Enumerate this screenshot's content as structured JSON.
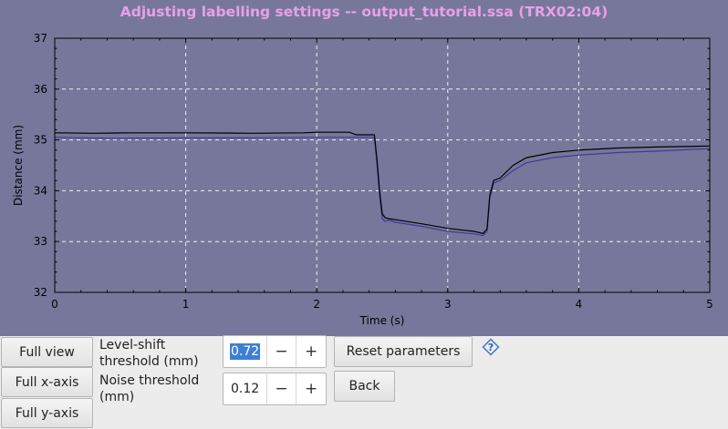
{
  "window": {
    "title": "Adjusting labelling settings -- output_tutorial.ssa (TRX02:04)"
  },
  "chart_data": {
    "type": "line",
    "xlabel": "Time (s)",
    "ylabel": "Distance (mm)",
    "xlim": [
      0,
      5
    ],
    "ylim": [
      32,
      37
    ],
    "x_ticks": [
      "0",
      "1",
      "2",
      "3",
      "4",
      "5"
    ],
    "y_ticks": [
      "32",
      "33",
      "34",
      "35",
      "36",
      "37"
    ],
    "grid": true,
    "series": [
      {
        "color": "#000000",
        "x": [
          0,
          0.3,
          0.6,
          1.0,
          1.5,
          1.9,
          2.0,
          2.25,
          2.3,
          2.44,
          2.46,
          2.48,
          2.5,
          2.52,
          2.55,
          2.6,
          2.8,
          3.0,
          3.2,
          3.27,
          3.3,
          3.32,
          3.35,
          3.4,
          3.5,
          3.6,
          3.8,
          4.0,
          4.3,
          4.6,
          5.0
        ],
        "y": [
          35.14,
          35.13,
          35.14,
          35.14,
          35.13,
          35.14,
          35.15,
          35.15,
          35.1,
          35.1,
          34.6,
          34.0,
          33.55,
          33.47,
          33.45,
          33.43,
          33.35,
          33.26,
          33.2,
          33.16,
          33.25,
          33.9,
          34.2,
          34.25,
          34.5,
          34.65,
          34.75,
          34.8,
          34.84,
          34.86,
          34.88
        ]
      },
      {
        "color": "#3b3b9c",
        "x": [
          0,
          0.5,
          1.0,
          1.5,
          2.0,
          2.3,
          2.44,
          2.46,
          2.48,
          2.5,
          2.52,
          2.55,
          2.6,
          2.8,
          3.0,
          3.2,
          3.27,
          3.3,
          3.32,
          3.35,
          3.4,
          3.5,
          3.6,
          3.8,
          4.0,
          4.3,
          4.6,
          5.0
        ],
        "y": [
          35.05,
          35.03,
          35.04,
          35.04,
          35.05,
          35.05,
          35.05,
          34.5,
          33.9,
          33.45,
          33.4,
          33.42,
          33.38,
          33.3,
          33.2,
          33.15,
          33.12,
          33.2,
          33.85,
          34.15,
          34.2,
          34.4,
          34.55,
          34.65,
          34.7,
          34.75,
          34.78,
          34.83
        ]
      }
    ]
  },
  "buttons": {
    "full_view": "Full view",
    "full_x_axis": "Full x-axis",
    "full_y_axis": "Full y-axis",
    "reset_parameters": "Reset parameters",
    "back": "Back"
  },
  "settings": {
    "level_shift_label": "Level-shift threshold (mm)",
    "level_shift_value": "0.72",
    "noise_label": "Noise threshold (mm)",
    "noise_value": "0.12",
    "minus_glyph": "−",
    "plus_glyph": "+"
  },
  "icons": {
    "help": "question-diamond-icon"
  }
}
